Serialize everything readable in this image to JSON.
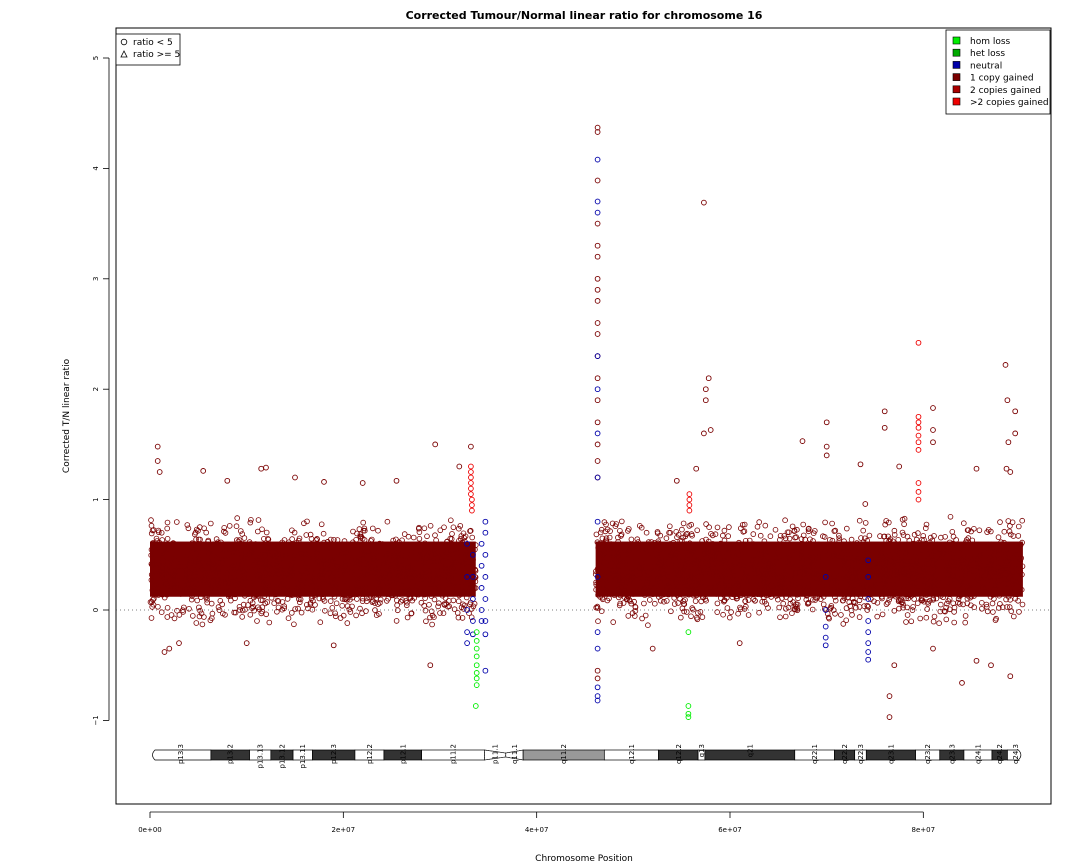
{
  "chart_data": {
    "type": "scatter",
    "title": "Corrected Tumour/Normal linear ratio for chromosome  16",
    "xlabel": "Chromosome Position",
    "ylabel": "Corrected T/N linear ratio",
    "xlim": [
      0,
      90000000
    ],
    "ylim": [
      -1.8,
      5.25
    ],
    "x_ticks": [
      0,
      20000000,
      40000000,
      60000000,
      80000000
    ],
    "x_tick_labels": [
      "0e+00",
      "2e+07",
      "4e+07",
      "6e+07",
      "8e+07"
    ],
    "y_ticks": [
      -1,
      0,
      1,
      2,
      3,
      4,
      5
    ],
    "y_tick_labels": [
      "−1",
      "0",
      "1",
      "2",
      "3",
      "4",
      "5"
    ],
    "reference_line": {
      "y": 0,
      "style": "dotted"
    },
    "shape_legend": {
      "position": "top-left",
      "entries": [
        {
          "shape": "circle",
          "label": "ratio < 5"
        },
        {
          "shape": "triangle",
          "label": "ratio >= 5"
        }
      ]
    },
    "color_legend": {
      "position": "top-right",
      "entries": [
        {
          "label": "hom loss",
          "color": "#00EE00"
        },
        {
          "label": "het loss",
          "color": "#00AA00"
        },
        {
          "label": "neutral",
          "color": "#0000AA"
        },
        {
          "label": "1 copy gained",
          "color": "#7A0000"
        },
        {
          "label": "2 copies gained",
          "color": "#AA0000"
        },
        {
          "label": ">2 copies gained",
          "color": "#EE0000"
        }
      ]
    },
    "series": [
      {
        "name": "1 copy gained",
        "color": "#7A0000",
        "marker": "circle",
        "bulk_regions": [
          {
            "x_range": [
              0,
              33700000
            ],
            "y_range": [
              -0.15,
              0.85
            ],
            "density": "very dense"
          },
          {
            "x_range": [
              46100000,
              90300000
            ],
            "y_range": [
              -0.15,
              0.85
            ],
            "density": "very dense"
          }
        ],
        "points": [
          [
            800000,
            1.48
          ],
          [
            800000,
            1.35
          ],
          [
            1000000,
            1.25
          ],
          [
            5500000,
            1.26
          ],
          [
            8000000,
            1.17
          ],
          [
            11500000,
            1.28
          ],
          [
            12000000,
            1.29
          ],
          [
            15000000,
            1.2
          ],
          [
            18000000,
            1.16
          ],
          [
            22000000,
            1.15
          ],
          [
            25500000,
            1.17
          ],
          [
            29500000,
            1.5
          ],
          [
            32000000,
            1.3
          ],
          [
            33200000,
            1.48
          ],
          [
            1500000,
            -0.38
          ],
          [
            2000000,
            -0.35
          ],
          [
            3000000,
            -0.3
          ],
          [
            10000000,
            -0.3
          ],
          [
            19000000,
            -0.32
          ],
          [
            29000000,
            -0.5
          ],
          [
            46300000,
            4.37
          ],
          [
            46300000,
            4.33
          ],
          [
            46300000,
            3.89
          ],
          [
            46300000,
            3.5
          ],
          [
            46300000,
            3.3
          ],
          [
            46300000,
            3.2
          ],
          [
            46300000,
            3.0
          ],
          [
            46300000,
            2.9
          ],
          [
            46300000,
            2.8
          ],
          [
            46300000,
            2.6
          ],
          [
            46300000,
            2.5
          ],
          [
            46300000,
            2.3
          ],
          [
            46300000,
            2.1
          ],
          [
            46300000,
            1.9
          ],
          [
            46300000,
            1.7
          ],
          [
            46300000,
            1.5
          ],
          [
            46300000,
            1.35
          ],
          [
            46300000,
            1.2
          ],
          [
            46300000,
            -0.55
          ],
          [
            46300000,
            -0.62
          ],
          [
            57300000,
            3.69
          ],
          [
            57800000,
            2.1
          ],
          [
            57500000,
            2.0
          ],
          [
            57500000,
            1.9
          ],
          [
            58000000,
            1.63
          ],
          [
            57300000,
            1.6
          ],
          [
            56500000,
            1.28
          ],
          [
            54500000,
            1.17
          ],
          [
            67500000,
            1.53
          ],
          [
            70000000,
            1.7
          ],
          [
            70000000,
            1.48
          ],
          [
            70000000,
            1.4
          ],
          [
            73500000,
            1.32
          ],
          [
            74000000,
            0.96
          ],
          [
            76000000,
            1.8
          ],
          [
            76000000,
            1.65
          ],
          [
            77500000,
            1.3
          ],
          [
            81000000,
            1.83
          ],
          [
            81000000,
            1.63
          ],
          [
            81000000,
            1.52
          ],
          [
            85500000,
            1.28
          ],
          [
            88500000,
            2.22
          ],
          [
            88700000,
            1.9
          ],
          [
            88800000,
            1.52
          ],
          [
            88600000,
            1.28
          ],
          [
            89500000,
            1.8
          ],
          [
            89500000,
            1.6
          ],
          [
            89000000,
            1.25
          ],
          [
            77000000,
            -0.5
          ],
          [
            76500000,
            -0.78
          ],
          [
            76500000,
            -0.97
          ],
          [
            84000000,
            -0.66
          ],
          [
            85500000,
            -0.46
          ],
          [
            87000000,
            -0.5
          ],
          [
            89000000,
            -0.6
          ],
          [
            81000000,
            -0.35
          ],
          [
            52000000,
            -0.35
          ],
          [
            61000000,
            -0.3
          ]
        ]
      },
      {
        "name": ">2 copies gained",
        "color": "#EE0000",
        "marker": "circle",
        "points": [
          [
            33200000,
            1.3
          ],
          [
            33200000,
            1.25
          ],
          [
            33200000,
            1.2
          ],
          [
            33200000,
            1.15
          ],
          [
            33200000,
            1.1
          ],
          [
            33200000,
            1.05
          ],
          [
            33300000,
            1.0
          ],
          [
            33300000,
            0.95
          ],
          [
            33300000,
            0.9
          ],
          [
            55800000,
            1.05
          ],
          [
            55800000,
            1.0
          ],
          [
            55800000,
            0.95
          ],
          [
            55800000,
            0.9
          ],
          [
            79500000,
            2.42
          ],
          [
            79500000,
            1.75
          ],
          [
            79500000,
            1.7
          ],
          [
            79500000,
            1.65
          ],
          [
            79500000,
            1.58
          ],
          [
            79500000,
            1.52
          ],
          [
            79500000,
            1.45
          ],
          [
            79500000,
            1.15
          ],
          [
            79500000,
            1.07
          ],
          [
            79500000,
            1.0
          ]
        ]
      },
      {
        "name": "neutral",
        "color": "#0000AA",
        "marker": "circle",
        "points": [
          [
            46300000,
            4.08
          ],
          [
            46300000,
            3.7
          ],
          [
            46300000,
            3.6
          ],
          [
            46300000,
            2.3
          ],
          [
            46300000,
            2.0
          ],
          [
            46300000,
            1.6
          ],
          [
            46300000,
            1.2
          ],
          [
            46300000,
            0.8
          ],
          [
            46300000,
            0.3
          ],
          [
            46300000,
            -0.2
          ],
          [
            46300000,
            -0.35
          ],
          [
            46300000,
            -0.7
          ],
          [
            46300000,
            -0.78
          ],
          [
            46300000,
            -0.82
          ],
          [
            32800000,
            0.6
          ],
          [
            32800000,
            0.3
          ],
          [
            32800000,
            0.0
          ],
          [
            32800000,
            -0.2
          ],
          [
            32800000,
            -0.3
          ],
          [
            33400000,
            0.5
          ],
          [
            33400000,
            0.3
          ],
          [
            33400000,
            0.1
          ],
          [
            33400000,
            -0.1
          ],
          [
            33400000,
            -0.22
          ],
          [
            34700000,
            0.8
          ],
          [
            34700000,
            0.7
          ],
          [
            34700000,
            0.5
          ],
          [
            34700000,
            0.3
          ],
          [
            34700000,
            0.1
          ],
          [
            34700000,
            -0.1
          ],
          [
            34700000,
            -0.22
          ],
          [
            34700000,
            -0.55
          ],
          [
            34300000,
            0.6
          ],
          [
            34300000,
            0.4
          ],
          [
            34300000,
            0.2
          ],
          [
            34300000,
            0.0
          ],
          [
            34300000,
            -0.1
          ],
          [
            69900000,
            0.3
          ],
          [
            69900000,
            0.0
          ],
          [
            69900000,
            -0.15
          ],
          [
            69900000,
            -0.25
          ],
          [
            69900000,
            -0.32
          ],
          [
            74300000,
            0.45
          ],
          [
            74300000,
            0.3
          ],
          [
            74300000,
            0.1
          ],
          [
            74300000,
            -0.1
          ],
          [
            74300000,
            -0.2
          ],
          [
            74300000,
            -0.3
          ],
          [
            74300000,
            -0.38
          ],
          [
            74300000,
            -0.45
          ]
        ]
      },
      {
        "name": "hom loss",
        "color": "#00EE00",
        "marker": "circle",
        "points": [
          [
            33800000,
            -0.2
          ],
          [
            33800000,
            -0.28
          ],
          [
            33800000,
            -0.35
          ],
          [
            33800000,
            -0.42
          ],
          [
            33800000,
            -0.5
          ],
          [
            33800000,
            -0.57
          ],
          [
            33800000,
            -0.62
          ],
          [
            33800000,
            -0.68
          ],
          [
            33700000,
            -0.87
          ],
          [
            55700000,
            -0.2
          ],
          [
            55700000,
            -0.87
          ],
          [
            55700000,
            -0.94
          ],
          [
            55700000,
            -0.97
          ]
        ]
      }
    ],
    "ideogram": {
      "chromosome": "16",
      "bands": [
        {
          "name": "p13.3",
          "start": 0,
          "end": 6300000,
          "stain": "gneg"
        },
        {
          "name": "p13.2",
          "start": 6300000,
          "end": 10300000,
          "stain": "gpos"
        },
        {
          "name": "p13.13",
          "start": 10300000,
          "end": 12500000,
          "stain": "gneg"
        },
        {
          "name": "p13.12",
          "start": 12500000,
          "end": 14800000,
          "stain": "gpos"
        },
        {
          "name": "p13.11",
          "start": 14800000,
          "end": 16800000,
          "stain": "gneg"
        },
        {
          "name": "p12.3",
          "start": 16800000,
          "end": 21200000,
          "stain": "gpos"
        },
        {
          "name": "p12.2",
          "start": 21200000,
          "end": 24200000,
          "stain": "gneg"
        },
        {
          "name": "p12.1",
          "start": 24200000,
          "end": 28100000,
          "stain": "gpos"
        },
        {
          "name": "p11.2",
          "start": 28100000,
          "end": 34600000,
          "stain": "gneg"
        },
        {
          "name": "p11.1",
          "start": 34600000,
          "end": 36800000,
          "stain": "acen"
        },
        {
          "name": "q11.1",
          "start": 36800000,
          "end": 38600000,
          "stain": "acen"
        },
        {
          "name": "q11.2",
          "start": 38600000,
          "end": 47000000,
          "stain": "gvar"
        },
        {
          "name": "q12.1",
          "start": 47000000,
          "end": 52600000,
          "stain": "gneg"
        },
        {
          "name": "q12.2",
          "start": 52600000,
          "end": 56700000,
          "stain": "gpos"
        },
        {
          "name": "q13",
          "start": 56700000,
          "end": 57400000,
          "stain": "gneg"
        },
        {
          "name": "q21",
          "start": 57400000,
          "end": 66700000,
          "stain": "gpos"
        },
        {
          "name": "q22.1",
          "start": 66700000,
          "end": 70800000,
          "stain": "gneg"
        },
        {
          "name": "q22.2",
          "start": 70800000,
          "end": 72900000,
          "stain": "gpos"
        },
        {
          "name": "q22.3",
          "start": 72900000,
          "end": 74100000,
          "stain": "gneg"
        },
        {
          "name": "q23.1",
          "start": 74100000,
          "end": 79200000,
          "stain": "gpos"
        },
        {
          "name": "q23.2",
          "start": 79200000,
          "end": 81700000,
          "stain": "gneg"
        },
        {
          "name": "q23.3",
          "start": 81700000,
          "end": 84200000,
          "stain": "gpos"
        },
        {
          "name": "q24.1",
          "start": 84200000,
          "end": 87100000,
          "stain": "gneg"
        },
        {
          "name": "q24.2",
          "start": 87100000,
          "end": 88700000,
          "stain": "gpos"
        },
        {
          "name": "q24.3",
          "start": 88700000,
          "end": 90350000,
          "stain": "gneg"
        }
      ]
    },
    "grid": false
  }
}
